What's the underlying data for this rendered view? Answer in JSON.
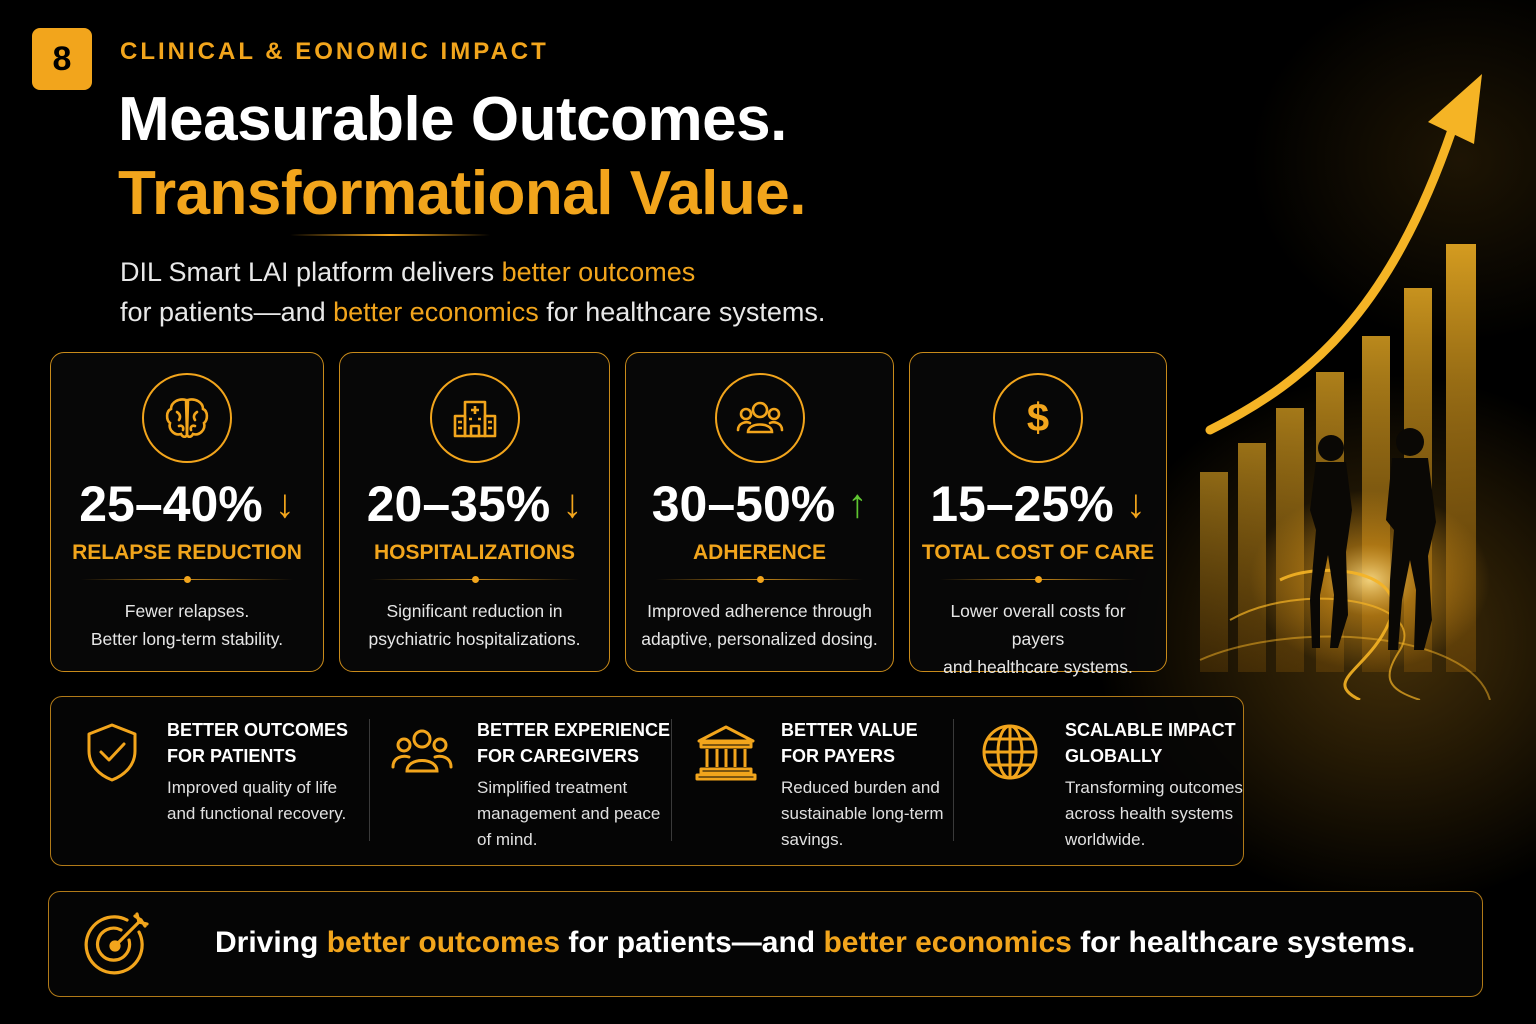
{
  "header": {
    "badge_number": "8",
    "kicker": "CLINICAL & EONOMIC IMPACT",
    "title_line1": "Measurable Outcomes.",
    "title_line2": "Transformational Value."
  },
  "intro": {
    "line1_a": "DIL Smart LAI platform delivers ",
    "line1_hl": "better outcomes",
    "line2_a": "for patients—and ",
    "line2_hl": "better economics",
    "line2_b": " for healthcare systems."
  },
  "stats": [
    {
      "icon": "brain-icon",
      "value": "25–40%",
      "direction": "down",
      "arrow": "↓",
      "arrow_color": "#f2a51c",
      "label": "RELAPSE REDUCTION",
      "desc_line1": "Fewer relapses.",
      "desc_line2": "Better long-term stability."
    },
    {
      "icon": "hospital-icon",
      "value": "20–35%",
      "direction": "down",
      "arrow": "↓",
      "arrow_color": "#f2a51c",
      "label": "HOSPITALIZATIONS",
      "desc_line1": "Significant reduction in",
      "desc_line2": "psychiatric hospitalizations."
    },
    {
      "icon": "people-icon",
      "value": "30–50%",
      "direction": "up",
      "arrow": "↑",
      "arrow_color": "#5fc531",
      "label": "ADHERENCE",
      "desc_line1": "Improved adherence through",
      "desc_line2": "adaptive, personalized dosing."
    },
    {
      "icon": "dollar-icon",
      "value": "15–25%",
      "direction": "down",
      "arrow": "↓",
      "arrow_color": "#f2a51c",
      "label": "TOTAL COST OF CARE",
      "desc_line1": "Lower overall costs for payers",
      "desc_line2": "and healthcare systems."
    }
  ],
  "benefits": [
    {
      "icon": "shield-check-icon",
      "title_line1": "BETTER OUTCOMES",
      "title_line2": "FOR PATIENTS",
      "desc_line1": "Improved quality of life",
      "desc_line2": "and functional recovery.",
      "desc_line3": ""
    },
    {
      "icon": "caregivers-icon",
      "title_line1": "BETTER EXPERIENCE",
      "title_line2": "FOR CAREGIVERS",
      "desc_line1": "Simplified treatment",
      "desc_line2": "management and peace",
      "desc_line3": "of mind."
    },
    {
      "icon": "bank-icon",
      "title_line1": "BETTER VALUE",
      "title_line2": "FOR PAYERS",
      "desc_line1": "Reduced burden and",
      "desc_line2": "sustainable long-term",
      "desc_line3": "savings."
    },
    {
      "icon": "globe-icon",
      "title_line1": "SCALABLE IMPACT",
      "title_line2": "GLOBALLY",
      "desc_line1": "Transforming outcomes",
      "desc_line2": "across health systems",
      "desc_line3": "worldwide."
    }
  ],
  "footer": {
    "icon": "target-icon",
    "part1": "Driving ",
    "hl1": "better outcomes",
    "part2": " for patients—and ",
    "hl2": "better economics",
    "part3": " for healthcare systems."
  },
  "colors": {
    "accent": "#f2a51c",
    "up_green": "#5fc531",
    "background": "#000000"
  }
}
